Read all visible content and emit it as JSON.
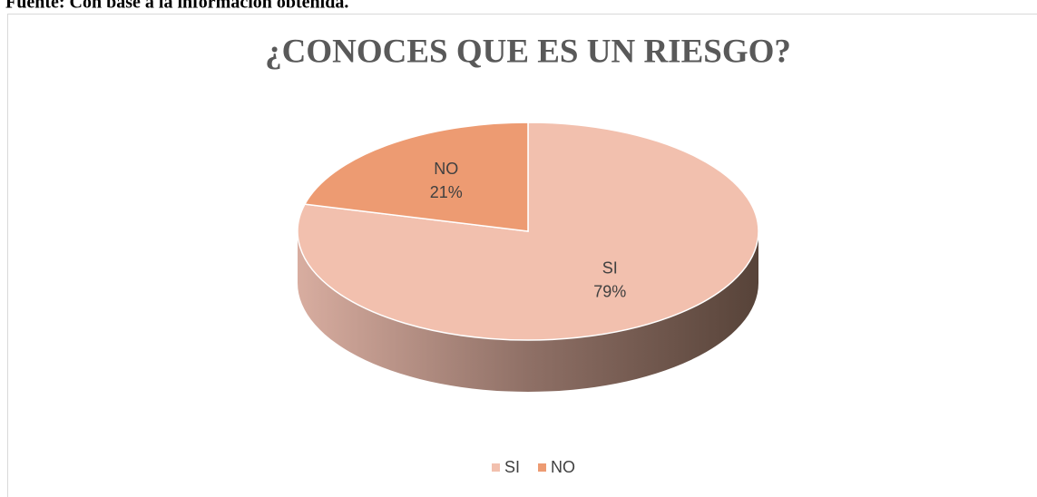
{
  "caption": "Fuente: Con base a la información obtenida.",
  "chart_data": {
    "type": "pie",
    "title": "¿CONOCES QUE ES UN RIESGO?",
    "categories": [
      "SI",
      "NO"
    ],
    "values": [
      79,
      21
    ],
    "value_labels": [
      "79%",
      "21%"
    ],
    "colors": [
      "#f2c0ae",
      "#ed9b72"
    ],
    "legend": "bottom"
  }
}
